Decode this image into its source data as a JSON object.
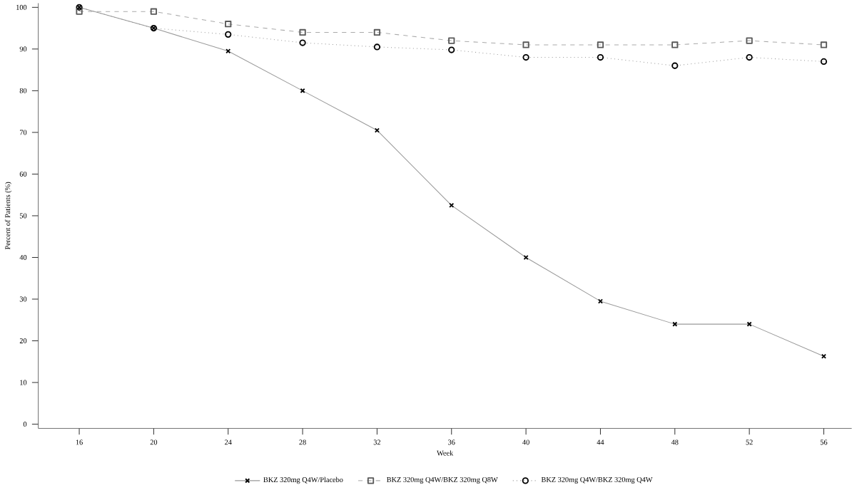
{
  "chart_data": {
    "type": "line",
    "xlabel": "Week",
    "ylabel": "Percent of Patients (%)",
    "x": [
      16,
      20,
      24,
      28,
      32,
      36,
      40,
      44,
      48,
      52,
      56
    ],
    "xlim": [
      13.8,
      57.5
    ],
    "xticks": [
      16,
      20,
      24,
      28,
      32,
      36,
      40,
      44,
      48,
      52,
      56
    ],
    "ylim": [
      -1,
      101
    ],
    "yticks": [
      0,
      10,
      20,
      30,
      40,
      50,
      60,
      70,
      80,
      90,
      100
    ],
    "grid": false,
    "legend": "bottom",
    "series": [
      {
        "name": "BKZ 320mg Q4W/Placebo",
        "color": "#999999",
        "marker": "cross",
        "line_style": "solid",
        "values": [
          100,
          95,
          89.5,
          80,
          70.5,
          52.5,
          40,
          29.5,
          24,
          24,
          16.3
        ]
      },
      {
        "name": "BKZ 320mg Q4W/BKZ 320mg Q8W",
        "color": "#aaaaaa",
        "marker": "square",
        "line_style": "dashed",
        "values": [
          99,
          99,
          96,
          94,
          94,
          92,
          91,
          91,
          91,
          92,
          91
        ]
      },
      {
        "name": "BKZ 320mg Q4W/BKZ 320mg Q4W",
        "color": "#999999",
        "marker": "circle",
        "line_style": "dotted",
        "values": [
          100,
          95,
          93.5,
          91.5,
          90.5,
          89.8,
          88,
          88,
          86,
          88,
          87
        ]
      }
    ]
  }
}
